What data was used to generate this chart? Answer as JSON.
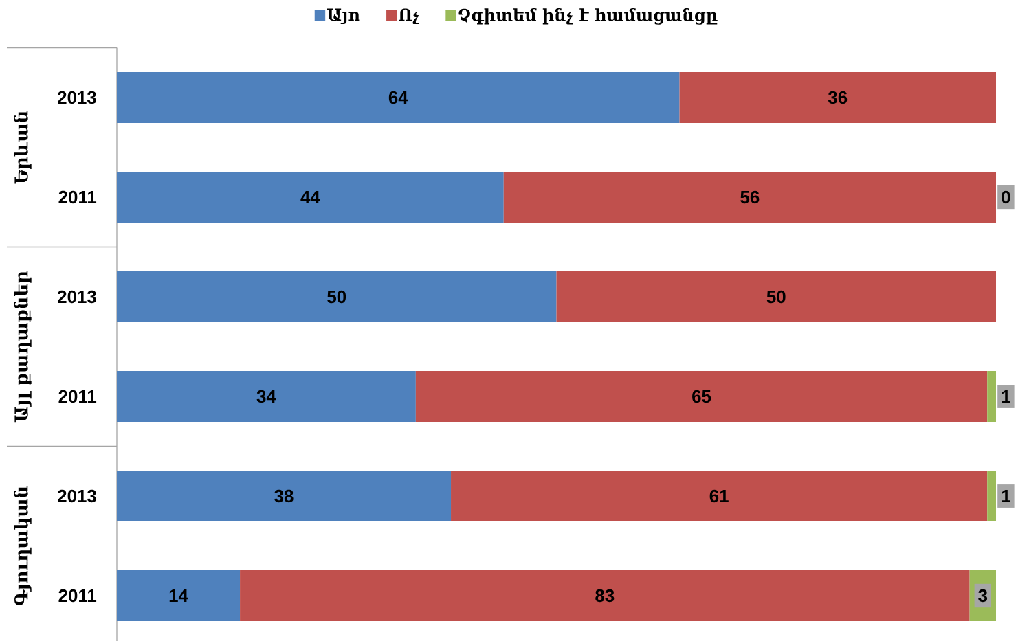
{
  "chart_data": {
    "type": "bar",
    "orientation": "horizontal",
    "stacked": true,
    "categories": [
      "2013",
      "2011",
      "2013",
      "2011",
      "2013",
      "2011"
    ],
    "series": [
      {
        "name": "Այո",
        "color": "#4f81bd",
        "values": [
          64,
          44,
          50,
          34,
          38,
          14
        ]
      },
      {
        "name": "Ոչ",
        "color": "#c0504d",
        "values": [
          36,
          56,
          50,
          65,
          61,
          83
        ]
      },
      {
        "name": "Չգիտեմ ինչ է համացանցը",
        "color": "#9bbb59",
        "values": [
          null,
          0,
          null,
          1,
          1,
          3
        ]
      }
    ],
    "xlim": [
      0,
      100
    ],
    "data_labels": true,
    "legend": "top",
    "tick_labels": "y",
    "annotations": [
      "Երևան",
      "Այլ քաղաքներ",
      "Գյուղական"
    ]
  }
}
